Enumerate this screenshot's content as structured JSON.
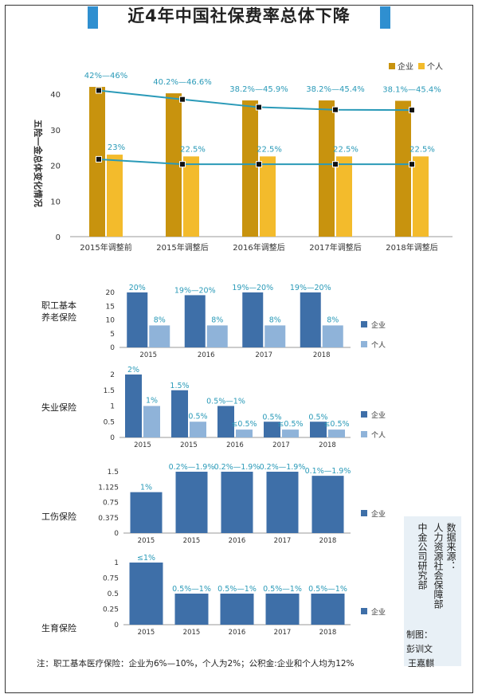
{
  "title": "近4年中国社保费率总体下降",
  "colors": {
    "gold_dark": "#c8930e",
    "gold_light": "#f3bb2c",
    "blue_dark": "#3e6fa8",
    "blue_light": "#8fb3d9",
    "line": "#2a9ab8",
    "accent": "#2f8fd0"
  },
  "top_chart": {
    "ylabel": "五险一金总体变化情况",
    "legend": [
      "企业",
      "个人"
    ]
  },
  "chart_data": [
    {
      "type": "bar",
      "categories": [
        "2015年调整前",
        "2015年调整后",
        "2016年调整后",
        "2017年调整后",
        "2018年调整后"
      ],
      "ylabel": "五险一金总体变化情况",
      "ylim": [
        0,
        40
      ],
      "yticks": [
        "0",
        "10",
        "20",
        "30",
        "40"
      ],
      "series": [
        {
          "name": "企业",
          "values": [
            42,
            40.2,
            38.2,
            38.2,
            38.1
          ],
          "labels": [
            "42%—46%",
            "40.2%—46.6%",
            "38.2%—45.9%",
            "38.2%—45.4%",
            "38.1%—45.4%"
          ]
        },
        {
          "name": "个人",
          "values": [
            23,
            22.5,
            22.5,
            22.5,
            22.5
          ],
          "labels": [
            "23%",
            "22.5%",
            "22.5%",
            "22.5%",
            "22.5%"
          ]
        }
      ],
      "lines": [
        {
          "values": [
            41,
            38.5,
            36.3,
            35.6,
            35.5
          ]
        },
        {
          "values": [
            21.7,
            20.3,
            20.3,
            20.3,
            20.3
          ]
        }
      ]
    },
    {
      "type": "bar",
      "label": "职工基本养老保险",
      "categories": [
        "2015",
        "2016",
        "2017",
        "2018"
      ],
      "ylim": [
        0,
        20
      ],
      "yticks": [
        "0",
        "5",
        "10",
        "15",
        "20"
      ],
      "series": [
        {
          "name": "企业",
          "values": [
            20,
            19,
            20,
            20
          ],
          "labels": [
            "20%",
            "19%—20%",
            "19%—20%",
            "19%—20%"
          ]
        },
        {
          "name": "个人",
          "values": [
            8,
            8,
            8,
            8
          ],
          "labels": [
            "8%",
            "8%",
            "8%",
            "8%"
          ]
        }
      ]
    },
    {
      "type": "bar",
      "label": "失业保险",
      "categories": [
        "2015",
        "2015",
        "2016",
        "2017",
        "2018"
      ],
      "ylim": [
        0,
        2
      ],
      "yticks": [
        "0",
        "0.5",
        "1",
        "1.5",
        "2"
      ],
      "series": [
        {
          "name": "企业",
          "values": [
            2,
            1.5,
            1,
            0.5,
            0.5
          ],
          "labels": [
            "2%",
            "1.5%",
            "0.5%—1%",
            "0.5%",
            "0.5%"
          ]
        },
        {
          "name": "个人",
          "values": [
            1,
            0.5,
            0.25,
            0.25,
            0.25
          ],
          "labels": [
            "1%",
            "0.5%",
            "≤0.5%",
            "≤0.5%",
            "≤0.5%"
          ]
        }
      ]
    },
    {
      "type": "bar",
      "label": "工伤保险",
      "categories": [
        "2015",
        "2015",
        "2016",
        "2017",
        "2018"
      ],
      "ylim": [
        0,
        1.5
      ],
      "yticks": [
        "0",
        "0.375",
        "0.75",
        "1.125",
        "1.5"
      ],
      "series": [
        {
          "name": "企业",
          "values": [
            1,
            1.5,
            1.5,
            1.5,
            1.4
          ],
          "labels": [
            "1%",
            "0.2%—1.9%",
            "0.2%—1.9%",
            "0.2%—1.9%",
            "0.1%—1.9%"
          ]
        }
      ]
    },
    {
      "type": "bar",
      "label": "生育保险",
      "categories": [
        "2015",
        "2015",
        "2016",
        "2017",
        "2018"
      ],
      "ylim": [
        0,
        1
      ],
      "yticks": [
        "0",
        "0.25",
        "0.5",
        "0.75",
        "1"
      ],
      "series": [
        {
          "name": "企业",
          "values": [
            1,
            0.5,
            0.5,
            0.5,
            0.5
          ],
          "labels": [
            "≤1%",
            "0.5%—1%",
            "0.5%—1%",
            "0.5%—1%",
            "0.5%—1%"
          ]
        }
      ]
    }
  ],
  "source": {
    "label": "数据来源：",
    "line1": "人力资源社会保障部",
    "line2": "中金公司研究部"
  },
  "maker": {
    "label": "制图：",
    "name1": "彭训文",
    "name2": "王嘉麒"
  },
  "note": "注：职工基本医疗保险：企业为6%—10%，个人为2%；公积金:企业和个人均为12%"
}
